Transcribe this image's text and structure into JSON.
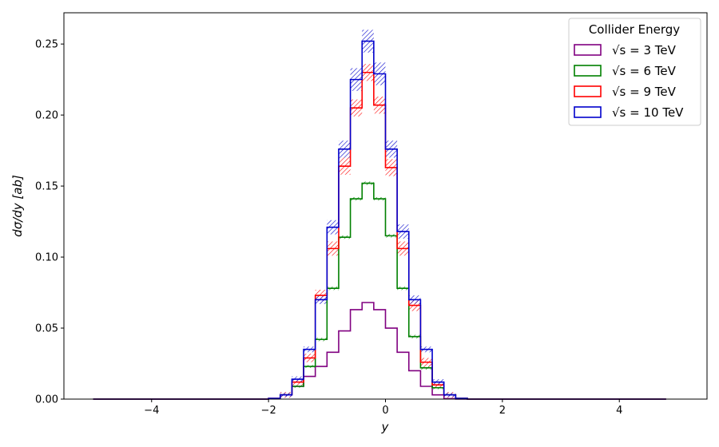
{
  "chart_data": {
    "type": "line",
    "step": true,
    "xlabel": "y",
    "ylabel": "dσ/dy [ab]",
    "xlim": [
      -5.5,
      5.5
    ],
    "ylim": [
      0,
      0.272
    ],
    "xticks": [
      -4,
      -2,
      0,
      2,
      4
    ],
    "xtick_labels": [
      "−4",
      "−2",
      "0",
      "2",
      "4"
    ],
    "yticks": [
      0.0,
      0.05,
      0.1,
      0.15,
      0.2,
      0.25
    ],
    "ytick_labels": [
      "0.00",
      "0.05",
      "0.10",
      "0.15",
      "0.20",
      "0.25"
    ],
    "grid": false,
    "legend": {
      "title": "Collider Energy",
      "placement": "top-right"
    },
    "bin_edges": [
      -5.0,
      -4.8,
      -4.6,
      -4.4,
      -4.2,
      -4.0,
      -3.8,
      -3.6,
      -3.4,
      -3.2,
      -3.0,
      -2.8,
      -2.6,
      -2.4,
      -2.2,
      -2.0,
      -1.8,
      -1.6,
      -1.4,
      -1.2,
      -1.0,
      -0.8,
      -0.6,
      -0.4,
      -0.2,
      0.0,
      0.2,
      0.4,
      0.6,
      0.8,
      1.0,
      1.2,
      1.4,
      1.6,
      1.8,
      2.0,
      2.2,
      2.4,
      2.6,
      2.8,
      3.0,
      3.2,
      3.4,
      3.6,
      3.8,
      4.0,
      4.2,
      4.4,
      4.6,
      4.8
    ],
    "series": [
      {
        "name": "√s = 3 TeV",
        "color": "#800080",
        "values": [
          0,
          0,
          0,
          0,
          0,
          0,
          0,
          0,
          0,
          0,
          0,
          0,
          0,
          0,
          0,
          0.0002,
          0.003,
          0.009,
          0.016,
          0.023,
          0.033,
          0.048,
          0.063,
          0.068,
          0.063,
          0.05,
          0.033,
          0.02,
          0.009,
          0.003,
          0.0003,
          0,
          0,
          0,
          0,
          0,
          0,
          0,
          0,
          0,
          0,
          0,
          0,
          0,
          0,
          0,
          0,
          0,
          0
        ],
        "uncertainty": [
          0,
          0,
          0,
          0,
          0,
          0,
          0,
          0,
          0,
          0,
          0,
          0,
          0,
          0,
          0,
          0,
          0,
          0,
          0,
          0,
          0,
          0,
          0,
          0,
          0,
          0,
          0,
          0,
          0,
          0,
          0,
          0,
          0,
          0,
          0,
          0,
          0,
          0,
          0,
          0,
          0,
          0,
          0,
          0,
          0,
          0,
          0,
          0,
          0
        ]
      },
      {
        "name": "√s = 6 TeV",
        "color": "#008000",
        "values": [
          0,
          0,
          0,
          0,
          0,
          0,
          0,
          0,
          0,
          0,
          0,
          0,
          0,
          0,
          0,
          0.0003,
          0.003,
          0.009,
          0.023,
          0.042,
          0.078,
          0.114,
          0.141,
          0.152,
          0.141,
          0.115,
          0.078,
          0.044,
          0.022,
          0.008,
          0.003,
          0.0005,
          0,
          0,
          0,
          0,
          0,
          0,
          0,
          0,
          0,
          0,
          0,
          0,
          0,
          0,
          0,
          0,
          0
        ],
        "uncertainty": [
          0,
          0,
          0,
          0,
          0,
          0,
          0,
          0,
          0,
          0,
          0,
          0,
          0,
          0,
          0,
          0,
          0.0008,
          0.001,
          0.001,
          0.0012,
          0.0012,
          0.0012,
          0.0012,
          0.0012,
          0.0012,
          0.0012,
          0.0012,
          0.0012,
          0.0012,
          0.001,
          0.0008,
          0,
          0,
          0,
          0,
          0,
          0,
          0,
          0,
          0,
          0,
          0,
          0,
          0,
          0,
          0,
          0,
          0,
          0
        ]
      },
      {
        "name": "√s = 9 TeV",
        "color": "#ff0000",
        "values": [
          0,
          0,
          0,
          0,
          0,
          0,
          0,
          0,
          0,
          0,
          0,
          0,
          0,
          0,
          0,
          0.0005,
          0.003,
          0.012,
          0.029,
          0.073,
          0.106,
          0.164,
          0.205,
          0.23,
          0.207,
          0.163,
          0.106,
          0.066,
          0.026,
          0.01,
          0.003,
          0.0005,
          0,
          0,
          0,
          0,
          0,
          0,
          0,
          0,
          0,
          0,
          0,
          0,
          0,
          0,
          0,
          0,
          0
        ],
        "uncertainty": [
          0,
          0,
          0,
          0,
          0,
          0,
          0,
          0,
          0,
          0,
          0,
          0,
          0,
          0,
          0,
          0,
          0.002,
          0.002,
          0.003,
          0.004,
          0.005,
          0.006,
          0.006,
          0.006,
          0.006,
          0.006,
          0.005,
          0.004,
          0.003,
          0.002,
          0.002,
          0,
          0,
          0,
          0,
          0,
          0,
          0,
          0,
          0,
          0,
          0,
          0,
          0,
          0,
          0,
          0,
          0,
          0
        ]
      },
      {
        "name": "√s = 10 TeV",
        "color": "#0000cc",
        "values": [
          0,
          0,
          0,
          0,
          0,
          0,
          0,
          0,
          0,
          0,
          0,
          0,
          0,
          0,
          0,
          0.0005,
          0.003,
          0.014,
          0.035,
          0.07,
          0.121,
          0.176,
          0.225,
          0.252,
          0.229,
          0.176,
          0.118,
          0.07,
          0.035,
          0.012,
          0.003,
          0.0005,
          0,
          0,
          0,
          0,
          0,
          0,
          0,
          0,
          0,
          0,
          0,
          0,
          0,
          0,
          0,
          0,
          0
        ],
        "uncertainty": [
          0,
          0,
          0,
          0,
          0,
          0,
          0,
          0,
          0,
          0,
          0,
          0,
          0,
          0,
          0,
          0,
          0.0015,
          0.002,
          0.002,
          0.003,
          0.005,
          0.006,
          0.008,
          0.008,
          0.008,
          0.006,
          0.005,
          0.003,
          0.002,
          0.002,
          0.0015,
          0,
          0,
          0,
          0,
          0,
          0,
          0,
          0,
          0,
          0,
          0,
          0,
          0,
          0,
          0,
          0,
          0,
          0
        ]
      }
    ]
  }
}
